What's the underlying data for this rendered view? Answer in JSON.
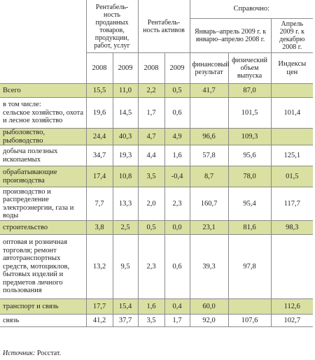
{
  "header": {
    "col_group_1": "Рентабель-ность проданных товаров, продукции, работ, услуг",
    "col_group_2": "Рентабель-ность активов",
    "col_group_3": "Справочно:",
    "sub_jan_apr": "Январь–апрель 2009 г. к январю–апрелю 2008 г.",
    "sub_apr_dec": "Апрель 2009 г. к декабрю 2008 г.",
    "y2008a": "2008",
    "y2009a": "2009",
    "y2008b": "2008",
    "y2009b": "2009",
    "fin_result": "финансовый результат",
    "phys_volume": "физический объем выпуска",
    "price_index": "Индексы цен"
  },
  "rows": [
    {
      "label": "Всего",
      "v": [
        "15,5",
        "11,0",
        "2,2",
        "0,5",
        "41,7",
        "87,0",
        ""
      ]
    },
    {
      "label": "в том числе:\nсельское хозяйство, охота и лесное хозяйство",
      "v": [
        "19,6",
        "14,5",
        "1,7",
        "0,6",
        "",
        "101,5",
        "101,4"
      ]
    },
    {
      "label": "рыболовство, рыбоводство",
      "v": [
        "24,4",
        "40,3",
        "4,7",
        "4,9",
        "96,6",
        "109,3",
        ""
      ]
    },
    {
      "label": "добыча полезных ископаемых",
      "v": [
        "34,7",
        "19,3",
        "4,4",
        "1,6",
        "57,8",
        "95,6",
        "125,1"
      ]
    },
    {
      "label": "обрабатывающие производства",
      "v": [
        "17,4",
        "10,8",
        "3,5",
        "-0,4",
        "8,7",
        "78,0",
        "01,5"
      ]
    },
    {
      "label": "производство и распределение электроэнергии, газа и воды",
      "v": [
        "7,7",
        "13,3",
        "2,0",
        "2,3",
        "160,7",
        "95,4",
        "117,7"
      ]
    },
    {
      "label": "строительство",
      "v": [
        "3,8",
        "2,5",
        "0,5",
        "0,0",
        "23,1",
        "81,6",
        "98,3"
      ]
    },
    {
      "label": "оптовая и розничная торговля; ремонт автотранспортных средств, мотоциклов, бытовых изделий и предметов личного пользования",
      "v": [
        "13,2",
        "9,5",
        "2,3",
        "0,6",
        "39,3",
        "97,8",
        ""
      ]
    },
    {
      "label": "транспорт и связь",
      "v": [
        "17,7",
        "15,4",
        "1,6",
        "0,4",
        "60,0",
        "",
        "112,6"
      ]
    },
    {
      "label": "связь",
      "v": [
        "41,2",
        "37,7",
        "3,5",
        "1,7",
        "92,0",
        "107,6",
        "102,7"
      ]
    }
  ],
  "source": {
    "prefix": "Источник:",
    "text": "Росстат."
  }
}
